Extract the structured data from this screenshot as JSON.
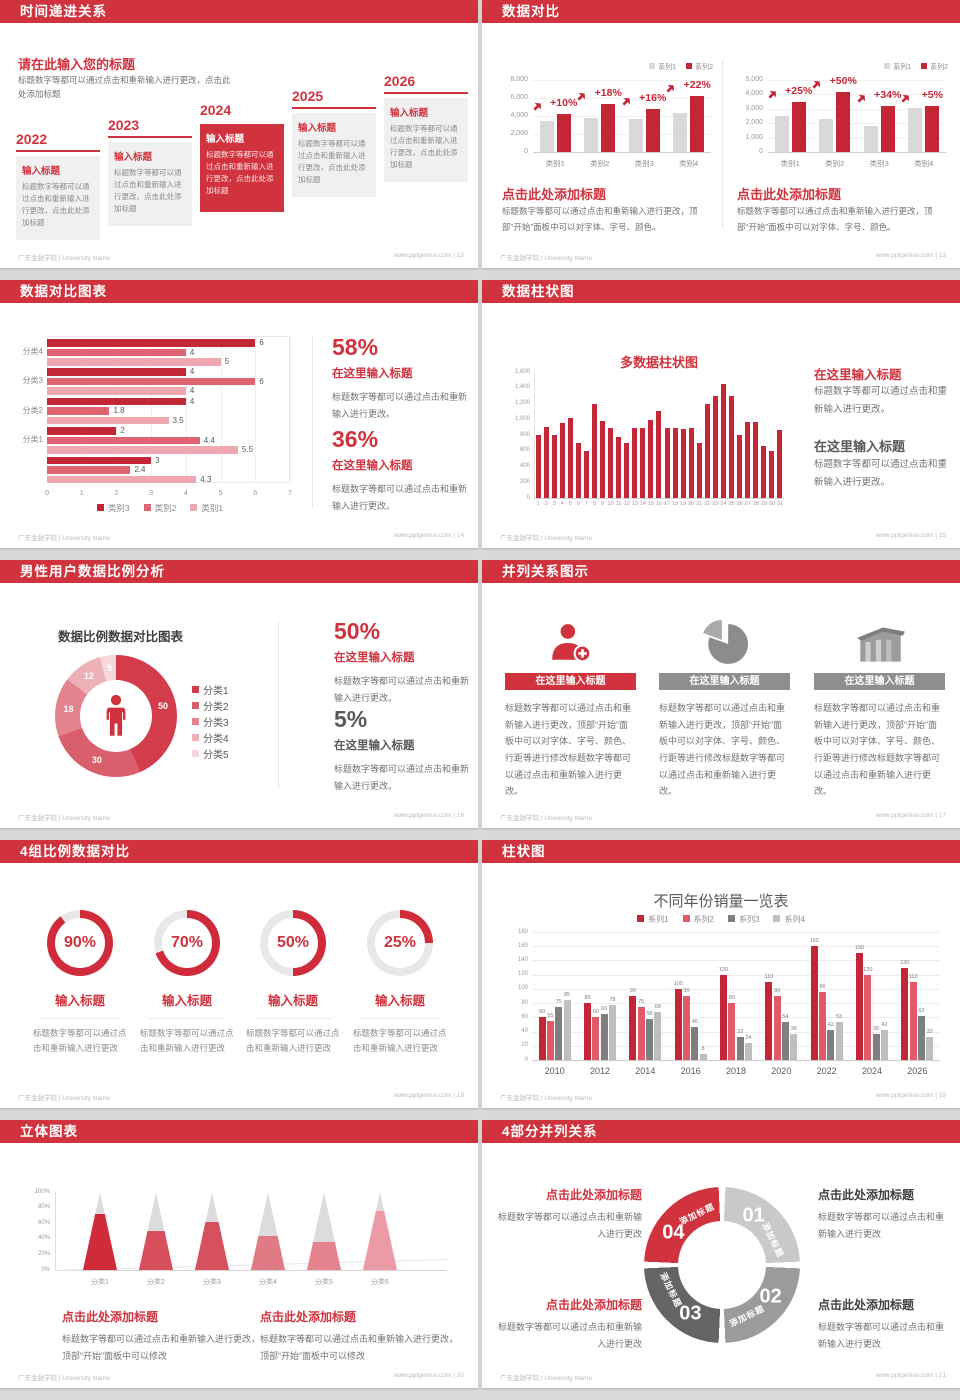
{
  "footer": {
    "org": "广东金融学院 | University Name",
    "site": "www.pptgenius.com",
    "sep": "|"
  },
  "slides": {
    "s12": {
      "title": "时间递进关系",
      "page": "12",
      "heading": "请在此输入您的标题",
      "intro": "标题数字等都可以通过点击和重新输入进行更改，点击此处添加标题",
      "steps": [
        {
          "year": "2022",
          "label": "输入标题",
          "body": "标题数字等都可以通过点击和重新输入进行更改，点击此处添加标题"
        },
        {
          "year": "2023",
          "label": "输入标题",
          "body": "标题数字等都可以通过点击和重新输入进行更改，点击此处添加标题"
        },
        {
          "year": "2024",
          "label": "输入标题",
          "body": "标题数字等都可以通过点击和重新输入进行更改，点击此处添加标题"
        },
        {
          "year": "2025",
          "label": "输入标题",
          "body": "标题数字等都可以通过点击和重新输入进行更改，点击此处添加标题"
        },
        {
          "year": "2026",
          "label": "输入标题",
          "body": "标题数字等都可以通过点击和重新输入进行更改，点击此处添加标题"
        }
      ]
    },
    "s13": {
      "title": "数据对比",
      "page": "13",
      "legend": [
        "系列1",
        "系列2"
      ],
      "series_colors": [
        "#d9d9d9",
        "#c32737"
      ],
      "charts": [
        {
          "categories": [
            "类别1",
            "类别2",
            "类别3",
            "类别4"
          ],
          "series1": [
            3500,
            3800,
            3700,
            4300
          ],
          "series2": [
            4200,
            5300,
            4800,
            6200
          ],
          "growth": [
            "+10%",
            "+18%",
            "+16%",
            "+22%"
          ],
          "ymax": 8000,
          "ystep": 2000
        },
        {
          "categories": [
            "类别1",
            "类别2",
            "类别3",
            "类别4"
          ],
          "series1": [
            2500,
            2300,
            1800,
            3050
          ],
          "series2": [
            3500,
            4200,
            3200,
            3200
          ],
          "growth": [
            "+25%",
            "+50%",
            "+34%",
            "+5%"
          ],
          "ymax": 5000,
          "ystep": 1000
        }
      ],
      "blocks": [
        {
          "heading": "点击此处添加标题",
          "body": "标题数字等都可以通过点击和重新输入进行更改，顶部“开始”面板中可以对字体、字号、颜色。"
        },
        {
          "heading": "点击此处添加标题",
          "body": "标题数字等都可以通过点击和重新输入进行更改，顶部“开始”面板中可以对字体、字号、颜色。"
        }
      ]
    },
    "s14": {
      "title": "数据对比图表",
      "page": "14",
      "groups": [
        "分类4",
        "分类3",
        "分类2",
        "分类1",
        ""
      ],
      "series": [
        {
          "name": "类别3",
          "color": "#c32737",
          "values": [
            6,
            4,
            4,
            2,
            3
          ]
        },
        {
          "name": "类别2",
          "color": "#dd6470",
          "values": [
            4,
            6,
            1.8,
            4.4,
            2.4
          ]
        },
        {
          "name": "类别1",
          "color": "#efa8b0",
          "values": [
            5,
            4,
            3.5,
            5.5,
            4.3
          ]
        }
      ],
      "xmax": 7,
      "stats": [
        {
          "pct": "58%",
          "heading": "在这里输入标题",
          "body": "标题数字等都可以通过点击和重新输入进行更改。"
        },
        {
          "pct": "36%",
          "heading": "在这里输入标题",
          "body": "标题数字等都可以通过点击和重新输入进行更改。"
        }
      ]
    },
    "s15": {
      "title": "数据柱状图",
      "page": "15",
      "chart_title": "多数据柱状图",
      "values": [
        800,
        900,
        800,
        950,
        1020,
        700,
        600,
        1200,
        980,
        890,
        780,
        700,
        890,
        890,
        990,
        1100,
        890,
        890,
        870,
        890,
        700,
        1200,
        1300,
        1450,
        1300,
        800,
        960,
        960,
        660,
        600,
        860
      ],
      "ymax": 1600,
      "ystep": 200,
      "blocks": [
        {
          "heading": "在这里输入标题",
          "body": "标题数字等都可以通过点击和重新输入进行更改。"
        },
        {
          "heading": "在这里输入标题",
          "body": "标题数字等都可以通过点击和重新输入进行更改。"
        }
      ]
    },
    "s16": {
      "title": "男性用户数据比例分析",
      "page": "16",
      "chart_title": "数据比例数据对比图表",
      "donut": {
        "values": [
          50,
          30,
          18,
          12,
          5
        ],
        "colors": [
          "#d23c4b",
          "#da5f6c",
          "#e2838e",
          "#edb0b7",
          "#f6d7da"
        ],
        "legend": [
          "分类1",
          "分类2",
          "分类3",
          "分类4",
          "分类5"
        ]
      },
      "stats": [
        {
          "pct": "50%",
          "heading": "在这里输入标题",
          "body": "标题数字等都可以通过点击和重新输入进行更改。"
        },
        {
          "pct": "5%",
          "heading": "在这里输入标题",
          "body": "标题数字等都可以通过点击和重新输入进行更改。"
        }
      ]
    },
    "s17": {
      "title": "并列关系图示",
      "page": "17",
      "columns": [
        {
          "icon": "nurse-icon",
          "banner": "在这里输入标题",
          "body": "标题数字等都可以通过点击和重新输入进行更改，顶部“开始”面板中可以对字体、字号、颜色、行距等进行修改标题数字等都可以通过点击和重新输入进行更改。"
        },
        {
          "icon": "pie-icon",
          "banner": "在这里输入标题",
          "body": "标题数字等都可以通过点击和重新输入进行更改，顶部“开始”面板中可以对字体、字号、颜色、行距等进行修改标题数字等都可以通过点击和重新输入进行更改。"
        },
        {
          "icon": "building-icon",
          "banner": "在这里输入标题",
          "body": "标题数字等都可以通过点击和重新输入进行更改，顶部“开始”面板中可以对字体、字号、颜色、行距等进行修改标题数字等都可以通过点击和重新输入进行更改。"
        }
      ]
    },
    "s18": {
      "title": "4组比例数据对比",
      "page": "18",
      "items": [
        {
          "pct": 90,
          "pct_label": "90%",
          "heading": "输入标题",
          "body": "标题数字等都可以通过点击和重新输入进行更改"
        },
        {
          "pct": 70,
          "pct_label": "70%",
          "heading": "输入标题",
          "body": "标题数字等都可以通过点击和重新输入进行更改"
        },
        {
          "pct": 50,
          "pct_label": "50%",
          "heading": "输入标题",
          "body": "标题数字等都可以通过点击和重新输入进行更改"
        },
        {
          "pct": 25,
          "pct_label": "25%",
          "heading": "输入标题",
          "body": "标题数字等都可以通过点击和重新输入进行更改"
        }
      ]
    },
    "s19": {
      "title": "柱状图",
      "page": "19",
      "chart_title": "不同年份销量一览表",
      "categories": [
        "2010",
        "2012",
        "2014",
        "2016",
        "2018",
        "2020",
        "2022",
        "2024",
        "2026"
      ],
      "series": [
        {
          "name": "系列1",
          "color": "#c32737",
          "values": [
            60,
            80,
            90,
            100,
            120,
            110,
            160,
            150,
            130
          ]
        },
        {
          "name": "系列2",
          "color": "#e05a67",
          "values": [
            55,
            60,
            75,
            90,
            80,
            90,
            96,
            120,
            110
          ]
        },
        {
          "name": "系列3",
          "color": "#7f7f7f",
          "values": [
            75,
            65,
            58,
            46,
            32,
            54,
            42,
            36,
            62
          ]
        },
        {
          "name": "系列4",
          "color": "#bfbfbf",
          "values": [
            85,
            78,
            68,
            8,
            24,
            36,
            53,
            42,
            32
          ]
        }
      ],
      "ymax": 180,
      "ystep": 20
    },
    "s20": {
      "title": "立体图表",
      "page": "20",
      "categories": [
        "分类1",
        "分类2",
        "分类3",
        "分类4",
        "分类5",
        "分类6"
      ],
      "fills": [
        72,
        50,
        62,
        44,
        36,
        76
      ],
      "colors": [
        "#cf2b3b",
        "#d74f5c",
        "#d7505d",
        "#e07a85",
        "#e4838e",
        "#ec9ba6"
      ],
      "blocks": [
        {
          "heading": "点击此处添加标题",
          "body": "标题数字等都可以通过点击和重新输入进行更改，顶部“开始”面板中可以修改"
        },
        {
          "heading": "点击此处添加标题",
          "body": "标题数字等都可以通过点击和重新输入进行更改，顶部“开始”面板中可以修改"
        }
      ]
    },
    "s21": {
      "title": "4部分并列关系",
      "page": "21",
      "segments": [
        {
          "num": "01",
          "label": "添加标题",
          "color": "#c9c9c9"
        },
        {
          "num": "02",
          "label": "添加标题",
          "color": "#9b9b9b"
        },
        {
          "num": "03",
          "label": "添加标题",
          "color": "#646464"
        },
        {
          "num": "04",
          "label": "添加标题",
          "color": "#d0333e"
        }
      ],
      "blocks": [
        {
          "heading": "点击此处添加标题",
          "body": "标题数字等都可以通过点击和重新输入进行更改"
        },
        {
          "heading": "点击此处添加标题",
          "body": "标题数字等都可以通过点击和重新输入进行更改"
        },
        {
          "heading": "点击此处添加标题",
          "body": "标题数字等都可以通过点击和重新输入进行更改"
        },
        {
          "heading": "点击此处添加标题",
          "body": "标题数字等都可以通过点击和重新输入进行更改"
        }
      ]
    }
  },
  "chart_data": [
    {
      "id": "growth-comparison-left",
      "type": "bar",
      "categories": [
        "类别1",
        "类别2",
        "类别3",
        "类别4"
      ],
      "series": [
        {
          "name": "系列1",
          "values": [
            3500,
            3800,
            3700,
            4300
          ]
        },
        {
          "name": "系列2",
          "values": [
            4200,
            5300,
            4800,
            6200
          ]
        }
      ],
      "annotations": [
        "+10%",
        "+18%",
        "+16%",
        "+22%"
      ],
      "ylim": [
        0,
        8000
      ],
      "legend_position": "top-right"
    },
    {
      "id": "growth-comparison-right",
      "type": "bar",
      "categories": [
        "类别1",
        "类别2",
        "类别3",
        "类别4"
      ],
      "series": [
        {
          "name": "系列1",
          "values": [
            2500,
            2300,
            1800,
            3050
          ]
        },
        {
          "name": "系列2",
          "values": [
            3500,
            4200,
            3200,
            3200
          ]
        }
      ],
      "annotations": [
        "+25%",
        "+50%",
        "+34%",
        "+5%"
      ],
      "ylim": [
        0,
        5000
      ],
      "legend_position": "top-right"
    },
    {
      "id": "horizontal-compare",
      "type": "bar",
      "orientation": "horizontal",
      "categories": [
        "分类4",
        "分类3",
        "分类2",
        "分类1",
        ""
      ],
      "series": [
        {
          "name": "类别3",
          "values": [
            6,
            4,
            4,
            2,
            3
          ]
        },
        {
          "name": "类别2",
          "values": [
            4,
            6,
            1.8,
            4.4,
            2.4
          ]
        },
        {
          "name": "类别1",
          "values": [
            5,
            4,
            3.5,
            5.5,
            4.3
          ]
        }
      ],
      "xlim": [
        0,
        7
      ],
      "legend_position": "bottom"
    },
    {
      "id": "multi-bar-31",
      "type": "bar",
      "title": "多数据柱状图",
      "x": [
        1,
        2,
        3,
        4,
        5,
        6,
        7,
        8,
        9,
        10,
        11,
        12,
        13,
        14,
        15,
        16,
        17,
        18,
        19,
        20,
        21,
        22,
        23,
        24,
        25,
        26,
        27,
        28,
        29,
        30,
        31
      ],
      "values": [
        800,
        900,
        800,
        950,
        1020,
        700,
        600,
        1200,
        980,
        890,
        780,
        700,
        890,
        890,
        990,
        1100,
        890,
        890,
        870,
        890,
        700,
        1200,
        1300,
        1450,
        1300,
        800,
        960,
        960,
        660,
        600,
        860
      ],
      "ylim": [
        0,
        1600
      ]
    },
    {
      "id": "male-ratio-donut",
      "type": "pie",
      "title": "数据比例数据对比图表",
      "labels": [
        "分类1",
        "分类2",
        "分类3",
        "分类4",
        "分类5"
      ],
      "values": [
        50,
        30,
        18,
        12,
        5
      ]
    },
    {
      "id": "progress-rings",
      "type": "pie",
      "labels": [
        "输入标题",
        "输入标题",
        "输入标题",
        "输入标题"
      ],
      "values": [
        90,
        70,
        50,
        25
      ],
      "unit": "%"
    },
    {
      "id": "yearly-sales",
      "type": "bar",
      "title": "不同年份销量一览表",
      "categories": [
        "2010",
        "2012",
        "2014",
        "2016",
        "2018",
        "2020",
        "2022",
        "2024",
        "2026"
      ],
      "series": [
        {
          "name": "系列1",
          "values": [
            60,
            80,
            90,
            100,
            120,
            110,
            160,
            150,
            130
          ]
        },
        {
          "name": "系列2",
          "values": [
            55,
            60,
            75,
            90,
            80,
            90,
            96,
            120,
            110
          ]
        },
        {
          "name": "系列3",
          "values": [
            75,
            65,
            58,
            46,
            32,
            54,
            42,
            36,
            62
          ]
        },
        {
          "name": "系列4",
          "values": [
            85,
            78,
            68,
            8,
            24,
            36,
            53,
            42,
            32
          ]
        }
      ],
      "ylim": [
        0,
        180
      ],
      "legend_position": "top"
    },
    {
      "id": "cone-chart",
      "type": "bar",
      "categories": [
        "分类1",
        "分类2",
        "分类3",
        "分类4",
        "分类5",
        "分类6"
      ],
      "values": [
        72,
        50,
        62,
        44,
        36,
        76
      ],
      "unit": "%",
      "ylim": [
        0,
        100
      ]
    },
    {
      "id": "four-part-cycle",
      "type": "pie",
      "labels": [
        "01",
        "02",
        "03",
        "04"
      ],
      "values": [
        25,
        25,
        25,
        25
      ]
    }
  ]
}
